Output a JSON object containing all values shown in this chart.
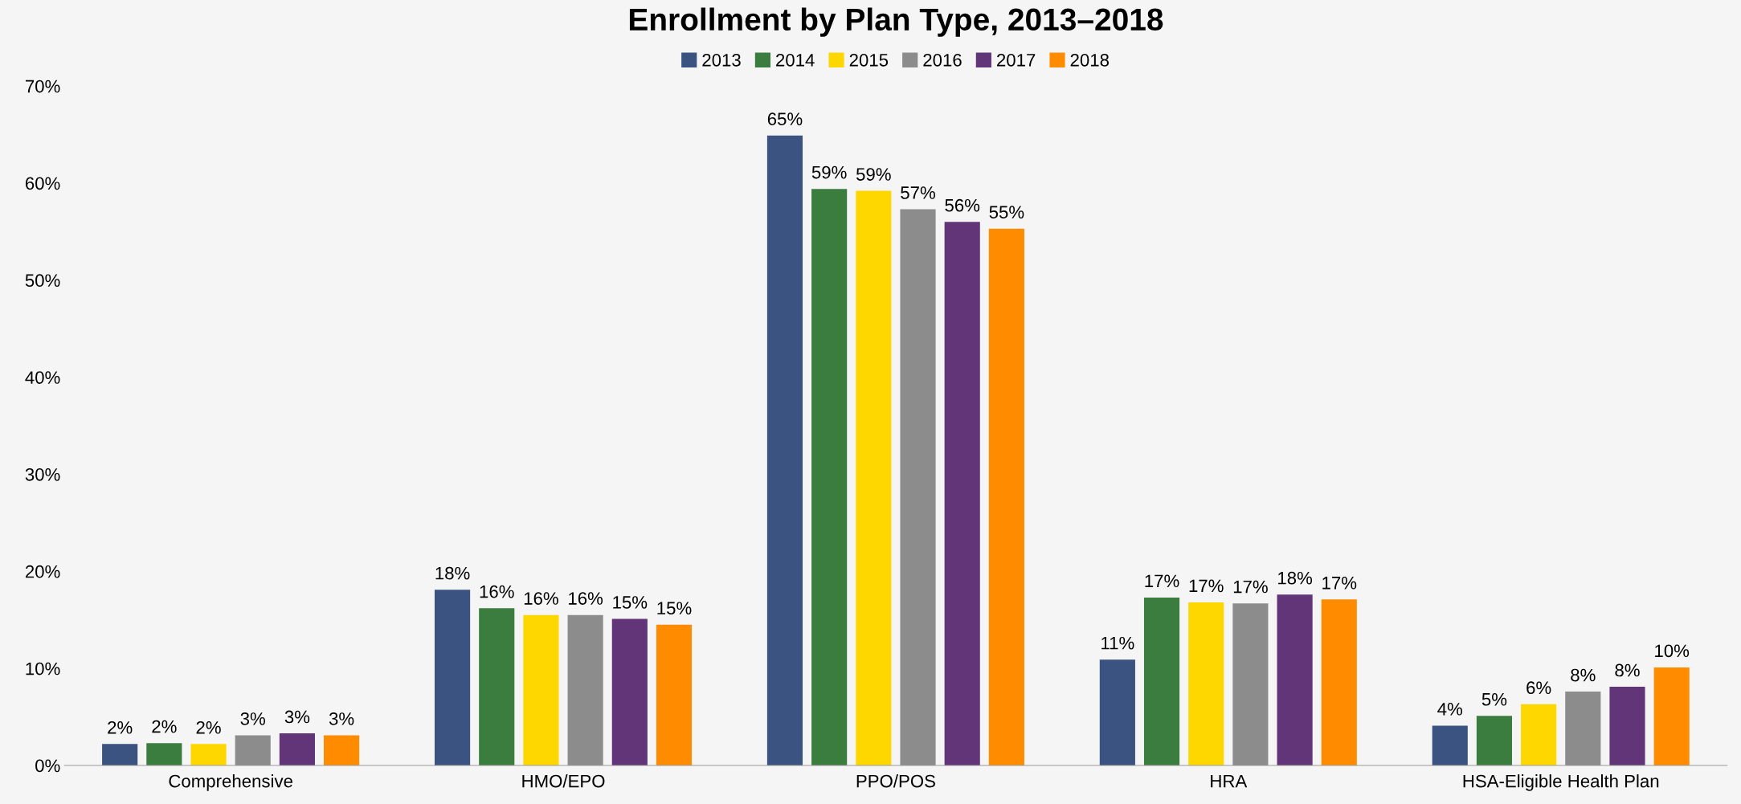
{
  "chart_data": {
    "type": "bar",
    "title": "Enrollment by Plan Type, 2013–2018",
    "categories": [
      "Comprehensive",
      "HMO/EPO",
      "PPO/POS",
      "HRA",
      "HSA-Eligible Health Plan"
    ],
    "series": [
      {
        "name": "2013",
        "color": "#3a5380",
        "values": [
          2.2,
          18.1,
          64.9,
          10.9,
          4.1
        ],
        "value_labels": [
          "2%",
          "18%",
          "65%",
          "11%",
          "4%"
        ]
      },
      {
        "name": "2014",
        "color": "#3a7d3e",
        "values": [
          2.3,
          16.2,
          59.4,
          17.3,
          5.1
        ],
        "value_labels": [
          "2%",
          "16%",
          "59%",
          "17%",
          "5%"
        ]
      },
      {
        "name": "2015",
        "color": "#ffd700",
        "values": [
          2.2,
          15.5,
          59.2,
          16.8,
          6.3
        ],
        "value_labels": [
          "2%",
          "16%",
          "59%",
          "17%",
          "6%"
        ]
      },
      {
        "name": "2016",
        "color": "#8c8c8c",
        "values": [
          3.1,
          15.5,
          57.3,
          16.7,
          7.6
        ],
        "value_labels": [
          "3%",
          "16%",
          "57%",
          "17%",
          "8%"
        ]
      },
      {
        "name": "2017",
        "color": "#613578",
        "values": [
          3.3,
          15.1,
          56.0,
          17.6,
          8.1
        ],
        "value_labels": [
          "3%",
          "15%",
          "56%",
          "18%",
          "8%"
        ]
      },
      {
        "name": "2018",
        "color": "#ff8c00",
        "values": [
          3.1,
          14.5,
          55.3,
          17.1,
          10.1
        ],
        "value_labels": [
          "3%",
          "15%",
          "55%",
          "17%",
          "10%"
        ]
      }
    ],
    "ylim": [
      0,
      70
    ],
    "yticks": [
      {
        "value": 0,
        "label": "0%"
      },
      {
        "value": 10,
        "label": "10%"
      },
      {
        "value": 20,
        "label": "20%"
      },
      {
        "value": 30,
        "label": "30%"
      },
      {
        "value": 40,
        "label": "40%"
      },
      {
        "value": 50,
        "label": "50%"
      },
      {
        "value": 60,
        "label": "60%"
      },
      {
        "value": 70,
        "label": "70%"
      }
    ],
    "grid": false,
    "legend": "top"
  }
}
